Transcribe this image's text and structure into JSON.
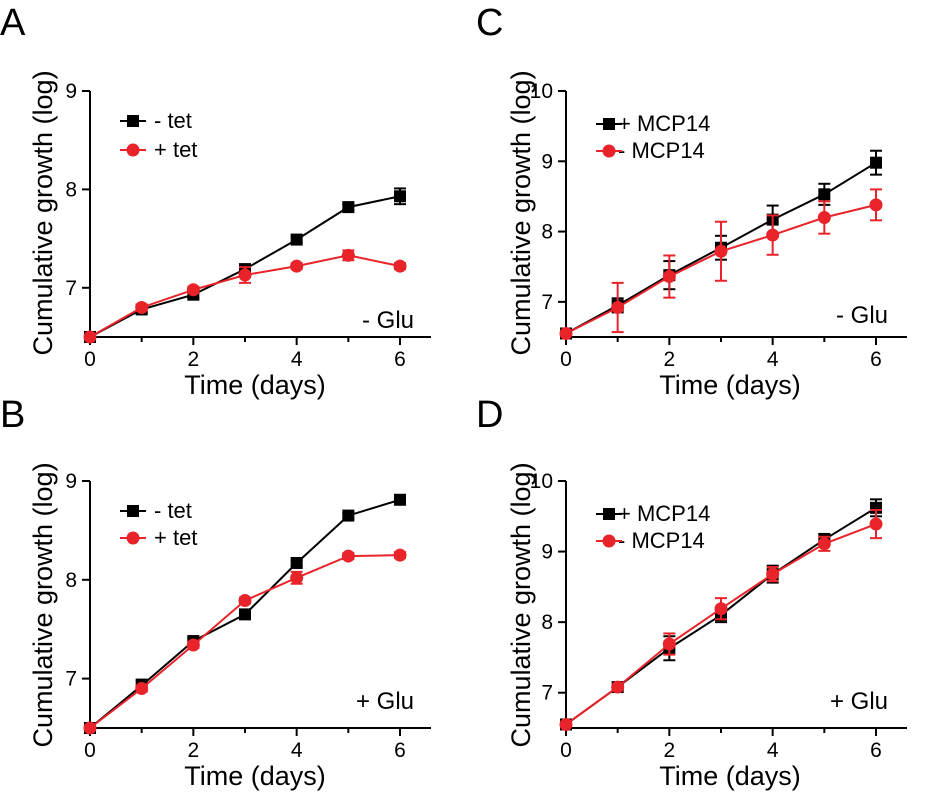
{
  "chart_data": [
    {
      "type": "line",
      "panel_label": "A",
      "title": "",
      "xlabel": "Time (days)",
      "ylabel": "Cumulative growth (log)",
      "xlim": [
        0,
        6.6
      ],
      "ylim": [
        6.5,
        9
      ],
      "xticks": [
        "0",
        "2",
        "4",
        "6"
      ],
      "yticks": [
        "7",
        "8",
        "9"
      ],
      "annotation": "- Glu",
      "legend_position": "top-left",
      "series": [
        {
          "name": "-  tet",
          "color": "#000000",
          "marker": "square",
          "x": [
            0,
            1,
            2,
            3,
            4,
            5,
            6
          ],
          "y": [
            6.5,
            6.78,
            6.93,
            7.19,
            7.49,
            7.82,
            7.93
          ],
          "err": [
            0,
            0.03,
            0.03,
            0.03,
            0.03,
            0.03,
            0.08
          ]
        },
        {
          "name": "+ tet",
          "color": "#e8242a",
          "marker": "circle",
          "x": [
            0,
            1,
            2,
            3,
            4,
            5,
            6
          ],
          "y": [
            6.5,
            6.8,
            6.98,
            7.13,
            7.22,
            7.33,
            7.22
          ],
          "err": [
            0,
            0.03,
            0.03,
            0.08,
            0.03,
            0.05,
            0.03
          ]
        }
      ]
    },
    {
      "type": "line",
      "panel_label": "B",
      "title": "",
      "xlabel": "Time (days)",
      "ylabel": "Cumulative growth (log)",
      "xlim": [
        0,
        6.6
      ],
      "ylim": [
        6.5,
        9
      ],
      "xticks": [
        "0",
        "2",
        "4",
        "6"
      ],
      "yticks": [
        "7",
        "8",
        "9"
      ],
      "annotation": "+ Glu",
      "legend_position": "top-left",
      "series": [
        {
          "name": "-  tet",
          "color": "#000000",
          "marker": "square",
          "x": [
            0,
            1,
            2,
            3,
            4,
            5,
            6
          ],
          "y": [
            6.5,
            6.93,
            7.38,
            7.65,
            8.17,
            8.65,
            8.81
          ],
          "err": [
            0,
            0.06,
            0.03,
            0.03,
            0.03,
            0.03,
            0.03
          ]
        },
        {
          "name": "+ tet",
          "color": "#e8242a",
          "marker": "circle",
          "x": [
            0,
            1,
            2,
            3,
            4,
            5,
            6
          ],
          "y": [
            6.5,
            6.9,
            7.34,
            7.79,
            8.02,
            8.24,
            8.25
          ],
          "err": [
            0,
            0.03,
            0.03,
            0.03,
            0.06,
            0.03,
            0.03
          ]
        }
      ]
    },
    {
      "type": "line",
      "panel_label": "C",
      "title": "",
      "xlabel": "Time (days)",
      "ylabel": "Cumulative growth (log)",
      "xlim": [
        0,
        6.6
      ],
      "ylim": [
        6.5,
        10
      ],
      "xticks": [
        "0",
        "2",
        "4",
        "6"
      ],
      "yticks": [
        "7",
        "8",
        "9",
        "10"
      ],
      "annotation": "- Glu",
      "legend_position": "top-left",
      "series": [
        {
          "name": "+ MCP14",
          "color": "#000000",
          "marker": "square",
          "x": [
            0,
            1,
            2,
            3,
            4,
            5,
            6
          ],
          "y": [
            6.55,
            6.95,
            7.38,
            7.77,
            8.17,
            8.53,
            8.98
          ],
          "err": [
            0,
            0.1,
            0.2,
            0.17,
            0.2,
            0.15,
            0.17
          ]
        },
        {
          "name": "- MCP14",
          "color": "#e8242a",
          "marker": "circle",
          "x": [
            0,
            1,
            2,
            3,
            4,
            5,
            6
          ],
          "y": [
            6.55,
            6.92,
            7.36,
            7.72,
            7.95,
            8.2,
            8.38
          ],
          "err": [
            0,
            0.35,
            0.3,
            0.42,
            0.28,
            0.23,
            0.22
          ]
        }
      ]
    },
    {
      "type": "line",
      "panel_label": "D",
      "title": "",
      "xlabel": "Time (days)",
      "ylabel": "Cumulative growth (log)",
      "xlim": [
        0,
        6.6
      ],
      "ylim": [
        6.5,
        10
      ],
      "xticks": [
        "0",
        "2",
        "4",
        "6"
      ],
      "yticks": [
        "7",
        "8",
        "9",
        "10"
      ],
      "annotation": "+ Glu",
      "legend_position": "top-left",
      "series": [
        {
          "name": "+ MCP14",
          "color": "#000000",
          "marker": "square",
          "x": [
            0,
            1,
            2,
            3,
            4,
            5,
            6
          ],
          "y": [
            6.55,
            7.08,
            7.63,
            8.1,
            8.68,
            9.17,
            9.62
          ],
          "err": [
            0,
            0.03,
            0.17,
            0.1,
            0.12,
            0.08,
            0.12
          ]
        },
        {
          "name": "- MCP14",
          "color": "#e8242a",
          "marker": "circle",
          "x": [
            0,
            1,
            2,
            3,
            4,
            5,
            6
          ],
          "y": [
            6.55,
            7.08,
            7.69,
            8.19,
            8.68,
            9.11,
            9.39
          ],
          "err": [
            0,
            0.03,
            0.15,
            0.15,
            0.1,
            0.1,
            0.2
          ]
        }
      ]
    }
  ]
}
